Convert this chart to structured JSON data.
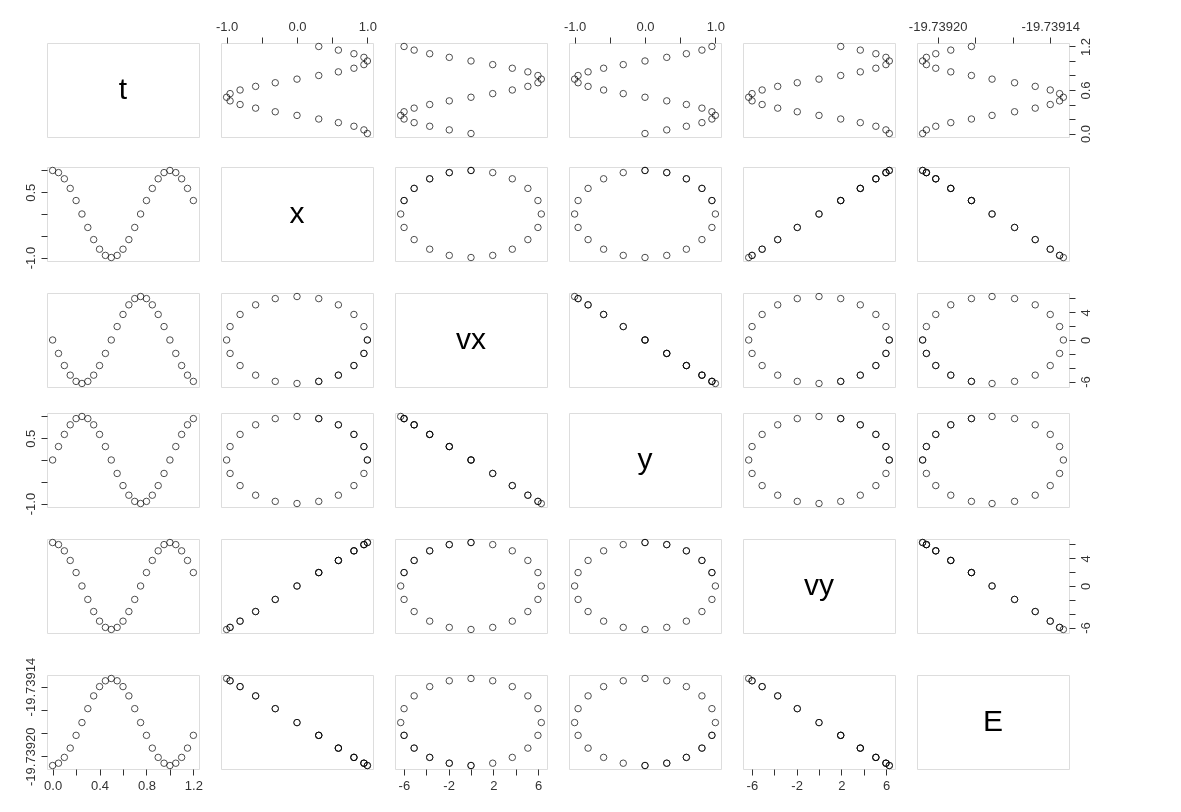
{
  "chart_data": [
    {
      "type": "other",
      "annotations": [
        "t"
      ]
    },
    {
      "type": "scatter",
      "x": [
        1,
        0.951,
        0.809,
        0.588,
        0.309,
        0,
        -0.309,
        -0.588,
        -0.809,
        -0.951,
        -1,
        -0.951,
        -0.809,
        -0.588,
        -0.309,
        0,
        0.309,
        0.588,
        0.809,
        0.951,
        1,
        0.951,
        0.809,
        0.588,
        0.309
      ],
      "values": [
        0,
        0.05,
        0.1,
        0.15,
        0.2,
        0.25,
        0.3,
        0.35,
        0.4,
        0.45,
        0.5,
        0.55,
        0.6,
        0.65,
        0.7,
        0.75,
        0.8,
        0.85,
        0.9,
        0.95,
        1,
        1.05,
        1.1,
        1.15,
        1.2
      ],
      "xlim": [
        -1.08,
        1.08
      ],
      "ylim": [
        -0.048,
        1.248
      ],
      "xticks": [
        {
          "value": -1,
          "label": "-1.0"
        },
        {
          "value": -0.5,
          "label": null
        },
        {
          "value": 0,
          "label": "0.0"
        },
        {
          "value": 0.5,
          "label": null
        },
        {
          "value": 1,
          "label": "1.0"
        }
      ],
      "tick_labels": "x",
      "marker": "circle",
      "color": "#000000"
    },
    {
      "type": "scatter",
      "x": [
        0,
        -1.94,
        -3.69,
        -5.08,
        -5.98,
        -6.28,
        -5.98,
        -5.08,
        -3.69,
        -1.94,
        0,
        1.94,
        3.69,
        5.08,
        5.98,
        6.28,
        5.98,
        5.08,
        3.69,
        1.94,
        0,
        -1.94,
        -3.69,
        -5.08,
        -5.98
      ],
      "values": [
        0,
        0.05,
        0.1,
        0.15,
        0.2,
        0.25,
        0.3,
        0.35,
        0.4,
        0.45,
        0.5,
        0.55,
        0.6,
        0.65,
        0.7,
        0.75,
        0.8,
        0.85,
        0.9,
        0.95,
        1,
        1.05,
        1.1,
        1.15,
        1.2
      ],
      "xlim": [
        -6.79,
        6.79
      ],
      "ylim": [
        -0.048,
        1.248
      ],
      "tick_labels": false,
      "marker": "circle",
      "color": "#000000"
    },
    {
      "type": "scatter",
      "x": [
        0,
        0.309,
        0.588,
        0.809,
        0.951,
        1,
        0.951,
        0.809,
        0.588,
        0.309,
        0,
        -0.309,
        -0.588,
        -0.809,
        -0.951,
        -1,
        -0.951,
        -0.809,
        -0.588,
        -0.309,
        0,
        0.309,
        0.588,
        0.809,
        0.951
      ],
      "values": [
        0,
        0.05,
        0.1,
        0.15,
        0.2,
        0.25,
        0.3,
        0.35,
        0.4,
        0.45,
        0.5,
        0.55,
        0.6,
        0.65,
        0.7,
        0.75,
        0.8,
        0.85,
        0.9,
        0.95,
        1,
        1.05,
        1.1,
        1.15,
        1.2
      ],
      "xlim": [
        -1.08,
        1.08
      ],
      "ylim": [
        -0.048,
        1.248
      ],
      "xticks": [
        {
          "value": -1,
          "label": "-1.0"
        },
        {
          "value": -0.5,
          "label": null
        },
        {
          "value": 0,
          "label": "0.0"
        },
        {
          "value": 0.5,
          "label": null
        },
        {
          "value": 1,
          "label": "1.0"
        }
      ],
      "tick_labels": "x",
      "marker": "circle",
      "color": "#000000"
    },
    {
      "type": "scatter",
      "x": [
        6.28,
        5.98,
        5.08,
        3.69,
        1.94,
        0,
        -1.94,
        -3.69,
        -5.08,
        -5.98,
        -6.28,
        -5.98,
        -5.08,
        -3.69,
        -1.94,
        0,
        1.94,
        3.69,
        5.08,
        5.98,
        6.28,
        5.98,
        5.08,
        3.69,
        1.94
      ],
      "values": [
        0,
        0.05,
        0.1,
        0.15,
        0.2,
        0.25,
        0.3,
        0.35,
        0.4,
        0.45,
        0.5,
        0.55,
        0.6,
        0.65,
        0.7,
        0.75,
        0.8,
        0.85,
        0.9,
        0.95,
        1,
        1.05,
        1.1,
        1.15,
        1.2
      ],
      "xlim": [
        -6.79,
        6.79
      ],
      "ylim": [
        -0.048,
        1.248
      ],
      "tick_labels": false,
      "marker": "circle",
      "color": "#000000"
    },
    {
      "type": "scatter",
      "x": [
        -19.739208,
        -19.739206,
        -19.739201,
        -19.739193,
        -19.739182,
        -19.739171,
        -19.739159,
        -19.739148,
        -19.73914,
        -19.739135,
        -19.739133,
        -19.739135,
        -19.73914,
        -19.739148,
        -19.739159,
        -19.739171,
        -19.739182,
        -19.739193,
        -19.739201,
        -19.739206,
        -19.739208,
        -19.739206,
        -19.739201,
        -19.739193,
        -19.739182
      ],
      "values": [
        0,
        0.05,
        0.1,
        0.15,
        0.2,
        0.25,
        0.3,
        0.35,
        0.4,
        0.45,
        0.5,
        0.55,
        0.6,
        0.65,
        0.7,
        0.75,
        0.8,
        0.85,
        0.9,
        0.95,
        1,
        1.05,
        1.1,
        1.15,
        1.2
      ],
      "xlim": [
        -19.739211,
        -19.73913
      ],
      "ylim": [
        -0.048,
        1.248
      ],
      "xticks": [
        {
          "value": -19.7392,
          "label": "-19.73920"
        },
        {
          "value": -19.73918,
          "label": null
        },
        {
          "value": -19.73916,
          "label": null
        },
        -19.73914
      ],
      "yticks": [
        {
          "value": 0,
          "label": "0.0"
        },
        {
          "value": 0.2,
          "label": null
        },
        {
          "value": 0.4,
          "label": null
        },
        0.6,
        {
          "value": 0.8,
          "label": null
        },
        {
          "value": 1.0,
          "label": null
        },
        1.2
      ],
      "marker": "circle",
      "color": "#000000"
    },
    {
      "type": "scatter",
      "x": [
        0,
        0.05,
        0.1,
        0.15,
        0.2,
        0.25,
        0.3,
        0.35,
        0.4,
        0.45,
        0.5,
        0.55,
        0.6,
        0.65,
        0.7,
        0.75,
        0.8,
        0.85,
        0.9,
        0.95,
        1,
        1.05,
        1.1,
        1.15,
        1.2
      ],
      "values": [
        1,
        0.951,
        0.809,
        0.588,
        0.309,
        0,
        -0.309,
        -0.588,
        -0.809,
        -0.951,
        -1,
        -0.951,
        -0.809,
        -0.588,
        -0.309,
        0,
        0.309,
        0.588,
        0.809,
        0.951,
        1,
        0.951,
        0.809,
        0.588,
        0.309
      ],
      "xlim": [
        -0.048,
        1.248
      ],
      "ylim": [
        -1.08,
        1.08
      ],
      "yticks": [
        {
          "value": -1,
          "label": "-1.0"
        },
        {
          "value": -0.5,
          "label": null
        },
        {
          "value": 0,
          "label": null
        },
        0.5,
        {
          "value": 1,
          "label": null
        }
      ],
      "tick_labels": "y",
      "marker": "circle",
      "color": "#000000"
    },
    {
      "type": "other",
      "annotations": [
        "x"
      ]
    },
    {
      "type": "scatter",
      "x": [
        0,
        -1.94,
        -3.69,
        -5.08,
        -5.98,
        -6.28,
        -5.98,
        -5.08,
        -3.69,
        -1.94,
        0,
        1.94,
        3.69,
        5.08,
        5.98,
        6.28,
        5.98,
        5.08,
        3.69,
        1.94,
        0,
        -1.94,
        -3.69,
        -5.08,
        -5.98
      ],
      "values": [
        1,
        0.951,
        0.809,
        0.588,
        0.309,
        0,
        -0.309,
        -0.588,
        -0.809,
        -0.951,
        -1,
        -0.951,
        -0.809,
        -0.588,
        -0.309,
        0,
        0.309,
        0.588,
        0.809,
        0.951,
        1,
        0.951,
        0.809,
        0.588,
        0.309
      ],
      "xlim": [
        -6.79,
        6.79
      ],
      "ylim": [
        -1.08,
        1.08
      ],
      "tick_labels": false,
      "marker": "circle",
      "color": "#000000"
    },
    {
      "type": "scatter",
      "x": [
        0,
        0.309,
        0.588,
        0.809,
        0.951,
        1,
        0.951,
        0.809,
        0.588,
        0.309,
        0,
        -0.309,
        -0.588,
        -0.809,
        -0.951,
        -1,
        -0.951,
        -0.809,
        -0.588,
        -0.309,
        0,
        0.309,
        0.588,
        0.809,
        0.951
      ],
      "values": [
        1,
        0.951,
        0.809,
        0.588,
        0.309,
        0,
        -0.309,
        -0.588,
        -0.809,
        -0.951,
        -1,
        -0.951,
        -0.809,
        -0.588,
        -0.309,
        0,
        0.309,
        0.588,
        0.809,
        0.951,
        1,
        0.951,
        0.809,
        0.588,
        0.309
      ],
      "xlim": [
        -1.08,
        1.08
      ],
      "ylim": [
        -1.08,
        1.08
      ],
      "tick_labels": false,
      "marker": "circle",
      "color": "#000000"
    },
    {
      "type": "scatter",
      "x": [
        6.28,
        5.98,
        5.08,
        3.69,
        1.94,
        0,
        -1.94,
        -3.69,
        -5.08,
        -5.98,
        -6.28,
        -5.98,
        -5.08,
        -3.69,
        -1.94,
        0,
        1.94,
        3.69,
        5.08,
        5.98,
        6.28,
        5.98,
        5.08,
        3.69,
        1.94
      ],
      "values": [
        1,
        0.951,
        0.809,
        0.588,
        0.309,
        0,
        -0.309,
        -0.588,
        -0.809,
        -0.951,
        -1,
        -0.951,
        -0.809,
        -0.588,
        -0.309,
        0,
        0.309,
        0.588,
        0.809,
        0.951,
        1,
        0.951,
        0.809,
        0.588,
        0.309
      ],
      "xlim": [
        -6.79,
        6.79
      ],
      "ylim": [
        -1.08,
        1.08
      ],
      "tick_labels": false,
      "marker": "circle",
      "color": "#000000"
    },
    {
      "type": "scatter",
      "x": [
        -19.739208,
        -19.739206,
        -19.739201,
        -19.739193,
        -19.739182,
        -19.739171,
        -19.739159,
        -19.739148,
        -19.73914,
        -19.739135,
        -19.739133,
        -19.739135,
        -19.73914,
        -19.739148,
        -19.739159,
        -19.739171,
        -19.739182,
        -19.739193,
        -19.739201,
        -19.739206,
        -19.739208,
        -19.739206,
        -19.739201,
        -19.739193,
        -19.739182
      ],
      "values": [
        1,
        0.951,
        0.809,
        0.588,
        0.309,
        0,
        -0.309,
        -0.588,
        -0.809,
        -0.951,
        -1,
        -0.951,
        -0.809,
        -0.588,
        -0.309,
        0,
        0.309,
        0.588,
        0.809,
        0.951,
        1,
        0.951,
        0.809,
        0.588,
        0.309
      ],
      "xlim": [
        -19.739211,
        -19.73913
      ],
      "ylim": [
        -1.08,
        1.08
      ],
      "tick_labels": false,
      "marker": "circle",
      "color": "#000000"
    },
    {
      "type": "scatter",
      "x": [
        0,
        0.05,
        0.1,
        0.15,
        0.2,
        0.25,
        0.3,
        0.35,
        0.4,
        0.45,
        0.5,
        0.55,
        0.6,
        0.65,
        0.7,
        0.75,
        0.8,
        0.85,
        0.9,
        0.95,
        1,
        1.05,
        1.1,
        1.15,
        1.2
      ],
      "values": [
        0,
        -1.94,
        -3.69,
        -5.08,
        -5.98,
        -6.28,
        -5.98,
        -5.08,
        -3.69,
        -1.94,
        0,
        1.94,
        3.69,
        5.08,
        5.98,
        6.28,
        5.98,
        5.08,
        3.69,
        1.94,
        0,
        -1.94,
        -3.69,
        -5.08,
        -5.98
      ],
      "xlim": [
        -0.048,
        1.248
      ],
      "ylim": [
        -6.79,
        6.79
      ],
      "tick_labels": false,
      "marker": "circle",
      "color": "#000000"
    },
    {
      "type": "scatter",
      "x": [
        1,
        0.951,
        0.809,
        0.588,
        0.309,
        0,
        -0.309,
        -0.588,
        -0.809,
        -0.951,
        -1,
        -0.951,
        -0.809,
        -0.588,
        -0.309,
        0,
        0.309,
        0.588,
        0.809,
        0.951,
        1,
        0.951,
        0.809,
        0.588,
        0.309
      ],
      "values": [
        0,
        -1.94,
        -3.69,
        -5.08,
        -5.98,
        -6.28,
        -5.98,
        -5.08,
        -3.69,
        -1.94,
        0,
        1.94,
        3.69,
        5.08,
        5.98,
        6.28,
        5.98,
        5.08,
        3.69,
        1.94,
        0,
        -1.94,
        -3.69,
        -5.08,
        -5.98
      ],
      "xlim": [
        -1.08,
        1.08
      ],
      "ylim": [
        -6.79,
        6.79
      ],
      "tick_labels": false,
      "marker": "circle",
      "color": "#000000"
    },
    {
      "type": "other",
      "annotations": [
        "vx"
      ]
    },
    {
      "type": "scatter",
      "x": [
        0,
        0.309,
        0.588,
        0.809,
        0.951,
        1,
        0.951,
        0.809,
        0.588,
        0.309,
        0,
        -0.309,
        -0.588,
        -0.809,
        -0.951,
        -1,
        -0.951,
        -0.809,
        -0.588,
        -0.309,
        0,
        0.309,
        0.588,
        0.809,
        0.951
      ],
      "values": [
        0,
        -1.94,
        -3.69,
        -5.08,
        -5.98,
        -6.28,
        -5.98,
        -5.08,
        -3.69,
        -1.94,
        0,
        1.94,
        3.69,
        5.08,
        5.98,
        6.28,
        5.98,
        5.08,
        3.69,
        1.94,
        0,
        -1.94,
        -3.69,
        -5.08,
        -5.98
      ],
      "xlim": [
        -1.08,
        1.08
      ],
      "ylim": [
        -6.79,
        6.79
      ],
      "tick_labels": false,
      "marker": "circle",
      "color": "#000000"
    },
    {
      "type": "scatter",
      "x": [
        6.28,
        5.98,
        5.08,
        3.69,
        1.94,
        0,
        -1.94,
        -3.69,
        -5.08,
        -5.98,
        -6.28,
        -5.98,
        -5.08,
        -3.69,
        -1.94,
        0,
        1.94,
        3.69,
        5.08,
        5.98,
        6.28,
        5.98,
        5.08,
        3.69,
        1.94
      ],
      "values": [
        0,
        -1.94,
        -3.69,
        -5.08,
        -5.98,
        -6.28,
        -5.98,
        -5.08,
        -3.69,
        -1.94,
        0,
        1.94,
        3.69,
        5.08,
        5.98,
        6.28,
        5.98,
        5.08,
        3.69,
        1.94,
        0,
        -1.94,
        -3.69,
        -5.08,
        -5.98
      ],
      "xlim": [
        -6.79,
        6.79
      ],
      "ylim": [
        -6.79,
        6.79
      ],
      "tick_labels": false,
      "marker": "circle",
      "color": "#000000"
    },
    {
      "type": "scatter",
      "x": [
        -19.739208,
        -19.739206,
        -19.739201,
        -19.739193,
        -19.739182,
        -19.739171,
        -19.739159,
        -19.739148,
        -19.73914,
        -19.739135,
        -19.739133,
        -19.739135,
        -19.73914,
        -19.739148,
        -19.739159,
        -19.739171,
        -19.739182,
        -19.739193,
        -19.739201,
        -19.739206,
        -19.739208,
        -19.739206,
        -19.739201,
        -19.739193,
        -19.739182
      ],
      "values": [
        0,
        -1.94,
        -3.69,
        -5.08,
        -5.98,
        -6.28,
        -5.98,
        -5.08,
        -3.69,
        -1.94,
        0,
        1.94,
        3.69,
        5.08,
        5.98,
        6.28,
        5.98,
        5.08,
        3.69,
        1.94,
        0,
        -1.94,
        -3.69,
        -5.08,
        -5.98
      ],
      "xlim": [
        -19.739211,
        -19.73913
      ],
      "ylim": [
        -6.79,
        6.79
      ],
      "yticks": [
        -6,
        {
          "value": -4,
          "label": null
        },
        {
          "value": -2,
          "label": null
        },
        0,
        {
          "value": 2,
          "label": null
        },
        4,
        {
          "value": 6,
          "label": null
        }
      ],
      "tick_labels": "y",
      "marker": "circle",
      "color": "#000000"
    },
    {
      "type": "scatter",
      "x": [
        0,
        0.05,
        0.1,
        0.15,
        0.2,
        0.25,
        0.3,
        0.35,
        0.4,
        0.45,
        0.5,
        0.55,
        0.6,
        0.65,
        0.7,
        0.75,
        0.8,
        0.85,
        0.9,
        0.95,
        1,
        1.05,
        1.1,
        1.15,
        1.2
      ],
      "values": [
        0,
        0.309,
        0.588,
        0.809,
        0.951,
        1,
        0.951,
        0.809,
        0.588,
        0.309,
        0,
        -0.309,
        -0.588,
        -0.809,
        -0.951,
        -1,
        -0.951,
        -0.809,
        -0.588,
        -0.309,
        0,
        0.309,
        0.588,
        0.809,
        0.951
      ],
      "xlim": [
        -0.048,
        1.248
      ],
      "ylim": [
        -1.08,
        1.08
      ],
      "yticks": [
        {
          "value": -1,
          "label": "-1.0"
        },
        {
          "value": -0.5,
          "label": null
        },
        {
          "value": 0,
          "label": null
        },
        0.5,
        {
          "value": 1,
          "label": null
        }
      ],
      "tick_labels": "y",
      "marker": "circle",
      "color": "#000000"
    },
    {
      "type": "scatter",
      "x": [
        1,
        0.951,
        0.809,
        0.588,
        0.309,
        0,
        -0.309,
        -0.588,
        -0.809,
        -0.951,
        -1,
        -0.951,
        -0.809,
        -0.588,
        -0.309,
        0,
        0.309,
        0.588,
        0.809,
        0.951,
        1,
        0.951,
        0.809,
        0.588,
        0.309
      ],
      "values": [
        0,
        0.309,
        0.588,
        0.809,
        0.951,
        1,
        0.951,
        0.809,
        0.588,
        0.309,
        0,
        -0.309,
        -0.588,
        -0.809,
        -0.951,
        -1,
        -0.951,
        -0.809,
        -0.588,
        -0.309,
        0,
        0.309,
        0.588,
        0.809,
        0.951
      ],
      "xlim": [
        -1.08,
        1.08
      ],
      "ylim": [
        -1.08,
        1.08
      ],
      "tick_labels": false,
      "marker": "circle",
      "color": "#000000"
    },
    {
      "type": "scatter",
      "x": [
        0,
        -1.94,
        -3.69,
        -5.08,
        -5.98,
        -6.28,
        -5.98,
        -5.08,
        -3.69,
        -1.94,
        0,
        1.94,
        3.69,
        5.08,
        5.98,
        6.28,
        5.98,
        5.08,
        3.69,
        1.94,
        0,
        -1.94,
        -3.69,
        -5.08,
        -5.98
      ],
      "values": [
        0,
        0.309,
        0.588,
        0.809,
        0.951,
        1,
        0.951,
        0.809,
        0.588,
        0.309,
        0,
        -0.309,
        -0.588,
        -0.809,
        -0.951,
        -1,
        -0.951,
        -0.809,
        -0.588,
        -0.309,
        0,
        0.309,
        0.588,
        0.809,
        0.951
      ],
      "xlim": [
        -6.79,
        6.79
      ],
      "ylim": [
        -1.08,
        1.08
      ],
      "tick_labels": false,
      "marker": "circle",
      "color": "#000000"
    },
    {
      "type": "other",
      "annotations": [
        "y"
      ]
    },
    {
      "type": "scatter",
      "x": [
        6.28,
        5.98,
        5.08,
        3.69,
        1.94,
        0,
        -1.94,
        -3.69,
        -5.08,
        -5.98,
        -6.28,
        -5.98,
        -5.08,
        -3.69,
        -1.94,
        0,
        1.94,
        3.69,
        5.08,
        5.98,
        6.28,
        5.98,
        5.08,
        3.69,
        1.94
      ],
      "values": [
        0,
        0.309,
        0.588,
        0.809,
        0.951,
        1,
        0.951,
        0.809,
        0.588,
        0.309,
        0,
        -0.309,
        -0.588,
        -0.809,
        -0.951,
        -1,
        -0.951,
        -0.809,
        -0.588,
        -0.309,
        0,
        0.309,
        0.588,
        0.809,
        0.951
      ],
      "xlim": [
        -6.79,
        6.79
      ],
      "ylim": [
        -1.08,
        1.08
      ],
      "tick_labels": false,
      "marker": "circle",
      "color": "#000000"
    },
    {
      "type": "scatter",
      "x": [
        -19.739208,
        -19.739206,
        -19.739201,
        -19.739193,
        -19.739182,
        -19.739171,
        -19.739159,
        -19.739148,
        -19.73914,
        -19.739135,
        -19.739133,
        -19.739135,
        -19.73914,
        -19.739148,
        -19.739159,
        -19.739171,
        -19.739182,
        -19.739193,
        -19.739201,
        -19.739206,
        -19.739208,
        -19.739206,
        -19.739201,
        -19.739193,
        -19.739182
      ],
      "values": [
        0,
        0.309,
        0.588,
        0.809,
        0.951,
        1,
        0.951,
        0.809,
        0.588,
        0.309,
        0,
        -0.309,
        -0.588,
        -0.809,
        -0.951,
        -1,
        -0.951,
        -0.809,
        -0.588,
        -0.309,
        0,
        0.309,
        0.588,
        0.809,
        0.951
      ],
      "xlim": [
        -19.739211,
        -19.73913
      ],
      "ylim": [
        -1.08,
        1.08
      ],
      "tick_labels": false,
      "marker": "circle",
      "color": "#000000"
    },
    {
      "type": "scatter",
      "x": [
        0,
        0.05,
        0.1,
        0.15,
        0.2,
        0.25,
        0.3,
        0.35,
        0.4,
        0.45,
        0.5,
        0.55,
        0.6,
        0.65,
        0.7,
        0.75,
        0.8,
        0.85,
        0.9,
        0.95,
        1,
        1.05,
        1.1,
        1.15,
        1.2
      ],
      "values": [
        6.28,
        5.98,
        5.08,
        3.69,
        1.94,
        0,
        -1.94,
        -3.69,
        -5.08,
        -5.98,
        -6.28,
        -5.98,
        -5.08,
        -3.69,
        -1.94,
        0,
        1.94,
        3.69,
        5.08,
        5.98,
        6.28,
        5.98,
        5.08,
        3.69,
        1.94
      ],
      "xlim": [
        -0.048,
        1.248
      ],
      "ylim": [
        -6.79,
        6.79
      ],
      "tick_labels": false,
      "marker": "circle",
      "color": "#000000"
    },
    {
      "type": "scatter",
      "x": [
        1,
        0.951,
        0.809,
        0.588,
        0.309,
        0,
        -0.309,
        -0.588,
        -0.809,
        -0.951,
        -1,
        -0.951,
        -0.809,
        -0.588,
        -0.309,
        0,
        0.309,
        0.588,
        0.809,
        0.951,
        1,
        0.951,
        0.809,
        0.588,
        0.309
      ],
      "values": [
        6.28,
        5.98,
        5.08,
        3.69,
        1.94,
        0,
        -1.94,
        -3.69,
        -5.08,
        -5.98,
        -6.28,
        -5.98,
        -5.08,
        -3.69,
        -1.94,
        0,
        1.94,
        3.69,
        5.08,
        5.98,
        6.28,
        5.98,
        5.08,
        3.69,
        1.94
      ],
      "xlim": [
        -1.08,
        1.08
      ],
      "ylim": [
        -6.79,
        6.79
      ],
      "tick_labels": false,
      "marker": "circle",
      "color": "#000000"
    },
    {
      "type": "scatter",
      "x": [
        0,
        -1.94,
        -3.69,
        -5.08,
        -5.98,
        -6.28,
        -5.98,
        -5.08,
        -3.69,
        -1.94,
        0,
        1.94,
        3.69,
        5.08,
        5.98,
        6.28,
        5.98,
        5.08,
        3.69,
        1.94,
        0,
        -1.94,
        -3.69,
        -5.08,
        -5.98
      ],
      "values": [
        6.28,
        5.98,
        5.08,
        3.69,
        1.94,
        0,
        -1.94,
        -3.69,
        -5.08,
        -5.98,
        -6.28,
        -5.98,
        -5.08,
        -3.69,
        -1.94,
        0,
        1.94,
        3.69,
        5.08,
        5.98,
        6.28,
        5.98,
        5.08,
        3.69,
        1.94
      ],
      "xlim": [
        -6.79,
        6.79
      ],
      "ylim": [
        -6.79,
        6.79
      ],
      "tick_labels": false,
      "marker": "circle",
      "color": "#000000"
    },
    {
      "type": "scatter",
      "x": [
        0,
        0.309,
        0.588,
        0.809,
        0.951,
        1,
        0.951,
        0.809,
        0.588,
        0.309,
        0,
        -0.309,
        -0.588,
        -0.809,
        -0.951,
        -1,
        -0.951,
        -0.809,
        -0.588,
        -0.309,
        0,
        0.309,
        0.588,
        0.809,
        0.951
      ],
      "values": [
        6.28,
        5.98,
        5.08,
        3.69,
        1.94,
        0,
        -1.94,
        -3.69,
        -5.08,
        -5.98,
        -6.28,
        -5.98,
        -5.08,
        -3.69,
        -1.94,
        0,
        1.94,
        3.69,
        5.08,
        5.98,
        6.28,
        5.98,
        5.08,
        3.69,
        1.94
      ],
      "xlim": [
        -1.08,
        1.08
      ],
      "ylim": [
        -6.79,
        6.79
      ],
      "tick_labels": false,
      "marker": "circle",
      "color": "#000000"
    },
    {
      "type": "other",
      "annotations": [
        "vy"
      ]
    },
    {
      "type": "scatter",
      "x": [
        -19.739208,
        -19.739206,
        -19.739201,
        -19.739193,
        -19.739182,
        -19.739171,
        -19.739159,
        -19.739148,
        -19.73914,
        -19.739135,
        -19.739133,
        -19.739135,
        -19.73914,
        -19.739148,
        -19.739159,
        -19.739171,
        -19.739182,
        -19.739193,
        -19.739201,
        -19.739206,
        -19.739208,
        -19.739206,
        -19.739201,
        -19.739193,
        -19.739182
      ],
      "values": [
        6.28,
        5.98,
        5.08,
        3.69,
        1.94,
        0,
        -1.94,
        -3.69,
        -5.08,
        -5.98,
        -6.28,
        -5.98,
        -5.08,
        -3.69,
        -1.94,
        0,
        1.94,
        3.69,
        5.08,
        5.98,
        6.28,
        5.98,
        5.08,
        3.69,
        1.94
      ],
      "xlim": [
        -19.739211,
        -19.73913
      ],
      "ylim": [
        -6.79,
        6.79
      ],
      "yticks": [
        -6,
        {
          "value": -4,
          "label": null
        },
        {
          "value": -2,
          "label": null
        },
        0,
        {
          "value": 2,
          "label": null
        },
        4,
        {
          "value": 6,
          "label": null
        }
      ],
      "tick_labels": "y",
      "marker": "circle",
      "color": "#000000"
    },
    {
      "type": "scatter",
      "x": [
        0,
        0.05,
        0.1,
        0.15,
        0.2,
        0.25,
        0.3,
        0.35,
        0.4,
        0.45,
        0.5,
        0.55,
        0.6,
        0.65,
        0.7,
        0.75,
        0.8,
        0.85,
        0.9,
        0.95,
        1,
        1.05,
        1.1,
        1.15,
        1.2
      ],
      "values": [
        -19.739208,
        -19.739206,
        -19.739201,
        -19.739193,
        -19.739182,
        -19.739171,
        -19.739159,
        -19.739148,
        -19.73914,
        -19.739135,
        -19.739133,
        -19.739135,
        -19.73914,
        -19.739148,
        -19.739159,
        -19.739171,
        -19.739182,
        -19.739193,
        -19.739201,
        -19.739206,
        -19.739208,
        -19.739206,
        -19.739201,
        -19.739193,
        -19.739182
      ],
      "xlim": [
        -0.048,
        1.248
      ],
      "ylim": [
        -19.739211,
        -19.73913
      ],
      "xticks": [
        {
          "value": 0,
          "label": "0.0"
        },
        {
          "value": 0.2,
          "label": null
        },
        0.4,
        {
          "value": 0.6,
          "label": null
        },
        0.8,
        {
          "value": 1.0,
          "label": null
        },
        1.2
      ],
      "yticks": [
        {
          "value": -19.7392,
          "label": "-19.73920"
        },
        {
          "value": -19.73918,
          "label": null
        },
        {
          "value": -19.73916,
          "label": null
        },
        -19.73914
      ],
      "marker": "circle",
      "color": "#000000"
    },
    {
      "type": "scatter",
      "x": [
        1,
        0.951,
        0.809,
        0.588,
        0.309,
        0,
        -0.309,
        -0.588,
        -0.809,
        -0.951,
        -1,
        -0.951,
        -0.809,
        -0.588,
        -0.309,
        0,
        0.309,
        0.588,
        0.809,
        0.951,
        1,
        0.951,
        0.809,
        0.588,
        0.309
      ],
      "values": [
        -19.739208,
        -19.739206,
        -19.739201,
        -19.739193,
        -19.739182,
        -19.739171,
        -19.739159,
        -19.739148,
        -19.73914,
        -19.739135,
        -19.739133,
        -19.739135,
        -19.73914,
        -19.739148,
        -19.739159,
        -19.739171,
        -19.739182,
        -19.739193,
        -19.739201,
        -19.739206,
        -19.739208,
        -19.739206,
        -19.739201,
        -19.739193,
        -19.739182
      ],
      "xlim": [
        -1.08,
        1.08
      ],
      "ylim": [
        -19.739211,
        -19.73913
      ],
      "tick_labels": false,
      "marker": "circle",
      "color": "#000000"
    },
    {
      "type": "scatter",
      "x": [
        0,
        -1.94,
        -3.69,
        -5.08,
        -5.98,
        -6.28,
        -5.98,
        -5.08,
        -3.69,
        -1.94,
        0,
        1.94,
        3.69,
        5.08,
        5.98,
        6.28,
        5.98,
        5.08,
        3.69,
        1.94,
        0,
        -1.94,
        -3.69,
        -5.08,
        -5.98
      ],
      "values": [
        -19.739208,
        -19.739206,
        -19.739201,
        -19.739193,
        -19.739182,
        -19.739171,
        -19.739159,
        -19.739148,
        -19.73914,
        -19.739135,
        -19.739133,
        -19.739135,
        -19.73914,
        -19.739148,
        -19.739159,
        -19.739171,
        -19.739182,
        -19.739193,
        -19.739201,
        -19.739206,
        -19.739208,
        -19.739206,
        -19.739201,
        -19.739193,
        -19.739182
      ],
      "xlim": [
        -6.79,
        6.79
      ],
      "ylim": [
        -19.739211,
        -19.73913
      ],
      "xticks": [
        -6,
        {
          "value": -4,
          "label": null
        },
        -2,
        {
          "value": 0,
          "label": null
        },
        2,
        {
          "value": 4,
          "label": null
        },
        6
      ],
      "tick_labels": "x",
      "marker": "circle",
      "color": "#000000"
    },
    {
      "type": "scatter",
      "x": [
        0,
        0.309,
        0.588,
        0.809,
        0.951,
        1,
        0.951,
        0.809,
        0.588,
        0.309,
        0,
        -0.309,
        -0.588,
        -0.809,
        -0.951,
        -1,
        -0.951,
        -0.809,
        -0.588,
        -0.309,
        0,
        0.309,
        0.588,
        0.809,
        0.951
      ],
      "values": [
        -19.739208,
        -19.739206,
        -19.739201,
        -19.739193,
        -19.739182,
        -19.739171,
        -19.739159,
        -19.739148,
        -19.73914,
        -19.739135,
        -19.739133,
        -19.739135,
        -19.73914,
        -19.739148,
        -19.739159,
        -19.739171,
        -19.739182,
        -19.739193,
        -19.739201,
        -19.739206,
        -19.739208,
        -19.739206,
        -19.739201,
        -19.739193,
        -19.739182
      ],
      "xlim": [
        -1.08,
        1.08
      ],
      "ylim": [
        -19.739211,
        -19.73913
      ],
      "tick_labels": false,
      "marker": "circle",
      "color": "#000000"
    },
    {
      "type": "scatter",
      "x": [
        6.28,
        5.98,
        5.08,
        3.69,
        1.94,
        0,
        -1.94,
        -3.69,
        -5.08,
        -5.98,
        -6.28,
        -5.98,
        -5.08,
        -3.69,
        -1.94,
        0,
        1.94,
        3.69,
        5.08,
        5.98,
        6.28,
        5.98,
        5.08,
        3.69,
        1.94
      ],
      "values": [
        -19.739208,
        -19.739206,
        -19.739201,
        -19.739193,
        -19.739182,
        -19.739171,
        -19.739159,
        -19.739148,
        -19.73914,
        -19.739135,
        -19.739133,
        -19.739135,
        -19.73914,
        -19.739148,
        -19.739159,
        -19.739171,
        -19.739182,
        -19.739193,
        -19.739201,
        -19.739206,
        -19.739208,
        -19.739206,
        -19.739201,
        -19.739193,
        -19.739182
      ],
      "xlim": [
        -6.79,
        6.79
      ],
      "ylim": [
        -19.739211,
        -19.73913
      ],
      "xticks": [
        -6,
        {
          "value": -4,
          "label": null
        },
        -2,
        {
          "value": 0,
          "label": null
        },
        2,
        {
          "value": 4,
          "label": null
        },
        6
      ],
      "tick_labels": "x",
      "marker": "circle",
      "color": "#000000"
    },
    {
      "type": "other",
      "annotations": [
        "E"
      ]
    }
  ]
}
